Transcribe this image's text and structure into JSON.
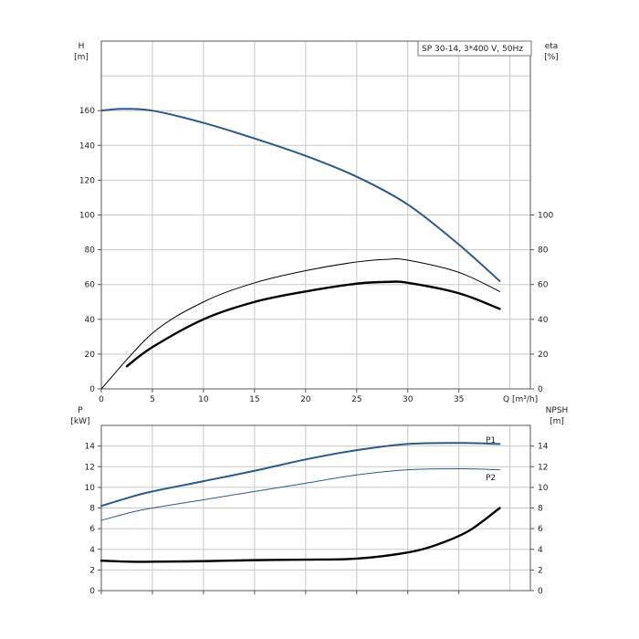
{
  "chart_data": [
    {
      "type": "line",
      "legend": "SP 30-14, 3*400 V, 50Hz",
      "xlabel": "Q [m³/h]",
      "xlim": [
        0,
        42
      ],
      "xticks": [
        "0",
        "5",
        "10",
        "15",
        "20",
        "25",
        "30",
        "35"
      ],
      "ylabel_left": [
        "H",
        "[m]"
      ],
      "ylim_left": [
        0,
        200
      ],
      "yticks_left": [
        "0",
        "20",
        "40",
        "60",
        "80",
        "100",
        "120",
        "140",
        "160"
      ],
      "ylabel_right": [
        "eta",
        "[%]"
      ],
      "yticks_right": [
        "0",
        "20",
        "40",
        "60",
        "80",
        "100"
      ],
      "grid": true,
      "series": [
        {
          "color": "#2a5a8c",
          "x": [
            0,
            2,
            5,
            10,
            15,
            20,
            25,
            30,
            35,
            39
          ],
          "y": [
            160,
            161,
            160,
            153,
            144,
            134,
            122,
            106,
            83,
            62
          ]
        },
        {
          "color": "#000000",
          "x": [
            0,
            5,
            10,
            15,
            20,
            25,
            28,
            30,
            35,
            39
          ],
          "y": [
            0,
            32,
            50,
            61,
            68,
            73,
            74.5,
            74,
            67,
            56
          ]
        },
        {
          "color": "#000000",
          "x": [
            2.5,
            5,
            10,
            15,
            20,
            25,
            28,
            30,
            35,
            39
          ],
          "y": [
            13,
            24,
            40,
            50,
            56,
            60.5,
            61.5,
            61,
            55,
            46
          ]
        }
      ]
    },
    {
      "type": "line",
      "xlim": [
        0,
        42
      ],
      "ylabel_left": [
        "P",
        "[kW]"
      ],
      "ylim_left": [
        0,
        16
      ],
      "yticks_left": [
        "0",
        "2",
        "4",
        "6",
        "8",
        "10",
        "12",
        "14"
      ],
      "ylabel_right": [
        "NPSH",
        "[m]"
      ],
      "yticks_right": [
        "0",
        "2",
        "4",
        "6",
        "8",
        "10",
        "12",
        "14"
      ],
      "grid": true,
      "series": [
        {
          "name": "P1",
          "color": "#2a5a8c",
          "x": [
            0,
            3,
            5,
            10,
            15,
            20,
            25,
            30,
            35,
            39
          ],
          "y": [
            8.2,
            9.1,
            9.6,
            10.6,
            11.6,
            12.7,
            13.6,
            14.2,
            14.3,
            14.2
          ]
        },
        {
          "name": "P2",
          "color": "#2a5a8c",
          "x": [
            0,
            3,
            5,
            10,
            15,
            20,
            25,
            30,
            35,
            39
          ],
          "y": [
            6.8,
            7.6,
            8.0,
            8.8,
            9.6,
            10.4,
            11.2,
            11.7,
            11.8,
            11.7
          ]
        },
        {
          "color": "#000000",
          "x": [
            0,
            3,
            5,
            10,
            15,
            20,
            25,
            30,
            33,
            36,
            39
          ],
          "y": [
            2.9,
            2.8,
            2.8,
            2.85,
            2.95,
            3.0,
            3.1,
            3.7,
            4.5,
            5.8,
            8.0
          ]
        }
      ]
    }
  ]
}
